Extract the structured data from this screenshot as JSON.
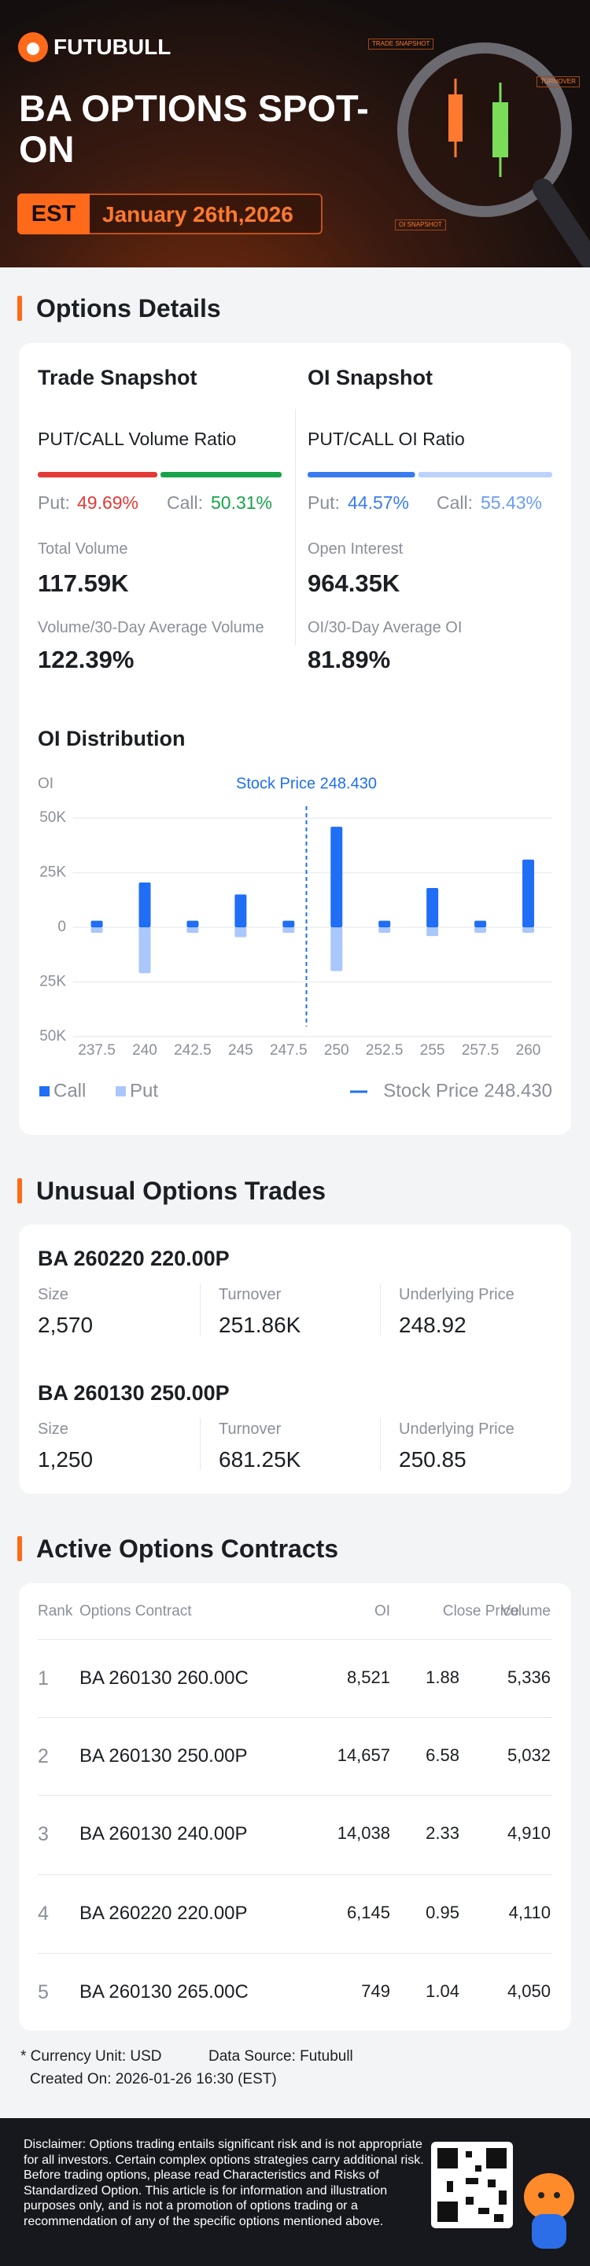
{
  "header": {
    "brand": "FUTUBULL",
    "title": "BA OPTIONS SPOT-ON",
    "timezone": "EST",
    "date": "January 26th,2026",
    "decor": [
      "TRADE SNAPSHOT",
      "TURNOVER",
      "OI SNAPSHOT"
    ]
  },
  "options_details": {
    "heading": "Options Details",
    "trade_snapshot": {
      "title": "Trade Snapshot",
      "ratio_title": "PUT/CALL Volume Ratio",
      "put_label": "Put:",
      "call_label": "Call:",
      "put": {
        "value": 49.69,
        "label": "49.69%"
      },
      "call": {
        "value": 50.31,
        "label": "50.31%"
      },
      "total_label": "Total Volume",
      "total": "117.59K",
      "avg_label": "Volume/30-Day Average Volume",
      "avg": "122.39%"
    },
    "oi_snapshot": {
      "title": "OI Snapshot",
      "ratio_title": "PUT/CALL OI Ratio",
      "put_label": "Put:",
      "call_label": "Call:",
      "put": {
        "value": 44.57,
        "label": "44.57%"
      },
      "call": {
        "value": 55.43,
        "label": "55.43%"
      },
      "total_label": "Open Interest",
      "total": "964.35K",
      "avg_label": "OI/30-Day Average OI",
      "avg": "81.89%"
    }
  },
  "chart_data": {
    "type": "bar",
    "title": "OI Distribution",
    "y_label": "OI",
    "x": [
      237.5,
      240,
      242.5,
      245,
      247.5,
      250,
      252.5,
      255,
      257.5,
      260
    ],
    "series": [
      {
        "name": "Call",
        "color": "#1f6ef5",
        "values": [
          3000,
          20500,
          3000,
          15000,
          3000,
          46000,
          3000,
          18000,
          3000,
          31000
        ]
      },
      {
        "name": "Put",
        "color": "#a9c7fa",
        "values": [
          -2500,
          -21000,
          -2500,
          -4500,
          -2500,
          -20000,
          -2500,
          -4000,
          -2500,
          -2500
        ]
      }
    ],
    "xlim": [
      236.25,
      261.25
    ],
    "ylim": [
      -50000,
      50000
    ],
    "yticks": [
      {
        "value": 50000,
        "label": "50K"
      },
      {
        "value": 25000,
        "label": "25K"
      },
      0,
      {
        "value": -25000,
        "label": "25K"
      },
      {
        "value": -50000,
        "label": "50K"
      }
    ],
    "grid": true,
    "reference_line": {
      "value": 248.43,
      "label": "Stock Price 248.430",
      "color": "#1f6ef5"
    }
  },
  "unusual_trades": {
    "heading": "Unusual Options Trades",
    "fields": [
      "Size",
      "Turnover",
      "Underlying Price"
    ],
    "trades": [
      {
        "contract": "BA 260220 220.00P",
        "size": "2,570",
        "turnover": "251.86K",
        "underlying": "248.92"
      },
      {
        "contract": "BA 260130 250.00P",
        "size": "1,250",
        "turnover": "681.25K",
        "underlying": "250.85"
      }
    ]
  },
  "active_contracts": {
    "heading": "Active Options Contracts",
    "columns": [
      "Rank",
      "Options Contract",
      "OI",
      "Close Price",
      "Volume"
    ],
    "rows": [
      [
        "1",
        "BA 260130 260.00C",
        "8,521",
        "1.88",
        "5,336"
      ],
      [
        "2",
        "BA 260130 250.00P",
        "14,657",
        "6.58",
        "5,032"
      ],
      [
        "3",
        "BA 260130 240.00P",
        "14,038",
        "2.33",
        "4,910"
      ],
      [
        "4",
        "BA 260220 220.00P",
        "6,145",
        "0.95",
        "4,110"
      ],
      [
        "5",
        "BA 260130 265.00C",
        "749",
        "1.04",
        "4,050"
      ]
    ]
  },
  "footer": {
    "currency": "* Currency Unit: USD",
    "source": "Data Source: Futubull",
    "created": "Created On: 2026-01-26 16:30 (EST)",
    "disclaimer": "Disclaimer: Options trading entails significant risk and is not appropriate for all investors. Certain complex options strategies carry additional risk. Before trading options, please read Characteristics and Risks of Standardized Option. This article is for information and illustration purposes only, and is not a promotion of options trading or a recommendation of any of the specific options mentioned above."
  }
}
